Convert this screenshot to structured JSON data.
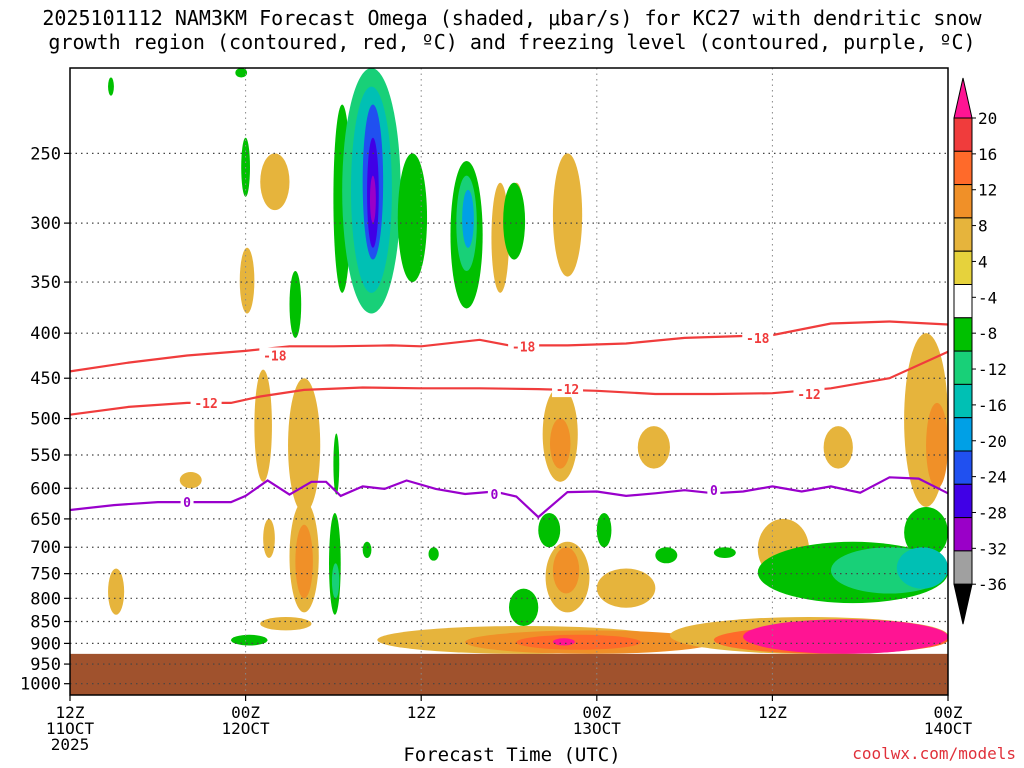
{
  "title": {
    "line1": "2025101112 NAM3KM Forecast Omega (shaded, μbar/s) for KC27 with dendritic snow",
    "line2": "growth region (contoured, red, ºC) and freezing level (contoured, purple, ºC)"
  },
  "credit": "coolwx.com/models",
  "chart_data": {
    "type": "heatmap",
    "xlabel": "Forecast Time (UTC)",
    "ylabel": "",
    "y_scale": "log-pressure",
    "ylim_hPa": [
      1030,
      200
    ],
    "xlim_hours": [
      0,
      60
    ],
    "y_ticks": [
      250,
      300,
      350,
      400,
      450,
      500,
      550,
      600,
      650,
      700,
      750,
      800,
      850,
      900,
      950,
      1000
    ],
    "x_ticks": [
      {
        "hour": 0,
        "lines": [
          "12Z",
          "11OCT",
          "2025"
        ]
      },
      {
        "hour": 12,
        "lines": [
          "00Z",
          "12OCT"
        ]
      },
      {
        "hour": 24,
        "lines": [
          "12Z"
        ]
      },
      {
        "hour": 36,
        "lines": [
          "00Z",
          "13OCT"
        ]
      },
      {
        "hour": 48,
        "lines": [
          "12Z"
        ]
      },
      {
        "hour": 60,
        "lines": [
          "00Z",
          "14OCT"
        ]
      }
    ],
    "colorbar": {
      "labels": [
        20,
        16,
        12,
        8,
        4,
        -4,
        -8,
        -12,
        -16,
        -20,
        -24,
        -28,
        -32,
        -36
      ],
      "colors": [
        "#ff1493",
        "#f03c3c",
        "#ff6a2a",
        "#f09028",
        "#e6b43c",
        "#e6d23c",
        "#ffffff",
        "#00c000",
        "#18d078",
        "#00c0b4",
        "#00a0e6",
        "#2050f0",
        "#4000e6",
        "#9a00c8",
        "#a0a0a0",
        "#000000"
      ]
    },
    "ground_color": "#a0522d",
    "ground_top_hPa": 925,
    "series": [
      {
        "name": "-18",
        "color": "#f03c3c",
        "x": [
          0,
          4,
          8,
          12,
          15,
          18,
          22,
          24,
          28,
          30,
          34,
          38,
          42,
          46,
          48,
          52,
          56,
          60
        ],
        "y": [
          442,
          432,
          424,
          419,
          414,
          414,
          413,
          414,
          407,
          413,
          413,
          411,
          405,
          403,
          402,
          390,
          388,
          391
        ]
      },
      {
        "name": "-12",
        "color": "#f03c3c",
        "x": [
          0,
          4,
          8,
          11,
          13,
          16,
          20,
          24,
          28,
          32,
          36,
          40,
          44,
          48,
          52,
          56,
          60
        ],
        "y": [
          495,
          485,
          480,
          480,
          472,
          464,
          461,
          462,
          462,
          463,
          465,
          469,
          469,
          468,
          462,
          450,
          420
        ]
      },
      {
        "name": "0",
        "color": "#9900cc",
        "x": [
          0,
          3,
          6,
          9,
          11,
          12,
          13.5,
          15,
          16.5,
          17.5,
          18.5,
          20,
          21.5,
          23,
          25,
          27,
          29,
          30.5,
          32,
          34,
          36,
          38,
          40,
          42,
          44,
          46,
          48,
          50,
          52,
          54,
          56,
          58,
          60
        ],
        "y": [
          635,
          627,
          622,
          622,
          622,
          612,
          588,
          610,
          590,
          590,
          612,
          597,
          601,
          588,
          601,
          609,
          605,
          613,
          647,
          606,
          605,
          612,
          608,
          603,
          608,
          605,
          597,
          605,
          597,
          607,
          583,
          585,
          608
        ]
      }
    ],
    "contour_labels": [
      {
        "text": "-18",
        "x": 14,
        "y": 424
      },
      {
        "text": "-18",
        "x": 31,
        "y": 414
      },
      {
        "text": "-18",
        "x": 47,
        "y": 405
      },
      {
        "text": "-12",
        "x": 9.3,
        "y": 480
      },
      {
        "text": "-12",
        "x": 34,
        "y": 463
      },
      {
        "text": "-12",
        "x": 50.5,
        "y": 469
      },
      {
        "text": "0",
        "x": 8,
        "y": 622
      },
      {
        "text": "0",
        "x": 29,
        "y": 609
      },
      {
        "text": "0",
        "x": 44,
        "y": 603
      }
    ],
    "omega_regions": [
      {
        "value": 6,
        "x": [
          2.6,
          3.7
        ],
        "y": [
          740,
          835
        ]
      },
      {
        "value": 6,
        "x": [
          13.0,
          15.0
        ],
        "y": [
          250,
          290
        ]
      },
      {
        "value": 6,
        "x": [
          11.6,
          12.6
        ],
        "y": [
          320,
          380
        ]
      },
      {
        "value": 6,
        "x": [
          12.6,
          13.8
        ],
        "y": [
          440,
          590
        ]
      },
      {
        "value": 6,
        "x": [
          13.2,
          14.0
        ],
        "y": [
          650,
          720
        ]
      },
      {
        "value": 6,
        "x": [
          14.9,
          17.1
        ],
        "y": [
          450,
          640
        ]
      },
      {
        "value": 6,
        "x": [
          15.0,
          17.0
        ],
        "y": [
          620,
          830
        ]
      },
      {
        "value": 10,
        "x": [
          15.4,
          16.6
        ],
        "y": [
          660,
          800
        ]
      },
      {
        "value": 6,
        "x": [
          33.0,
          35.0
        ],
        "y": [
          250,
          345
        ]
      },
      {
        "value": 6,
        "x": [
          28.8,
          30.0
        ],
        "y": [
          270,
          360
        ]
      },
      {
        "value": 6,
        "x": [
          30.0,
          31.0
        ],
        "y": [
          270,
          320
        ]
      },
      {
        "value": 6,
        "x": [
          32.3,
          34.7
        ],
        "y": [
          460,
          590
        ]
      },
      {
        "value": 10,
        "x": [
          32.8,
          34.2
        ],
        "y": [
          500,
          570
        ]
      },
      {
        "value": 6,
        "x": [
          32.5,
          35.5
        ],
        "y": [
          690,
          830
        ]
      },
      {
        "value": 10,
        "x": [
          33.0,
          34.8
        ],
        "y": [
          700,
          790
        ]
      },
      {
        "value": 6,
        "x": [
          36.0,
          40.0
        ],
        "y": [
          740,
          820
        ]
      },
      {
        "value": 6,
        "x": [
          38.8,
          41.0
        ],
        "y": [
          510,
          570
        ]
      },
      {
        "value": 6,
        "x": [
          47.0,
          50.5
        ],
        "y": [
          650,
          760
        ]
      },
      {
        "value": 6,
        "x": [
          51.5,
          53.5
        ],
        "y": [
          510,
          570
        ]
      },
      {
        "value": 6,
        "x": [
          57.0,
          60.0
        ],
        "y": [
          400,
          630
        ]
      },
      {
        "value": 10,
        "x": [
          58.5,
          60.0
        ],
        "y": [
          480,
          600
        ]
      },
      {
        "value": 6,
        "x": [
          7.5,
          9.0
        ],
        "y": [
          575,
          600
        ]
      },
      {
        "value": 6,
        "x": [
          13.0,
          16.5
        ],
        "y": [
          840,
          870
        ]
      },
      {
        "value": 6,
        "x": [
          21.0,
          41.0
        ],
        "y": [
          860,
          925
        ]
      },
      {
        "value": 10,
        "x": [
          27.0,
          44.0
        ],
        "y": [
          870,
          925
        ]
      },
      {
        "value": 14,
        "x": [
          30.5,
          39.0
        ],
        "y": [
          880,
          915
        ]
      },
      {
        "value": 18,
        "x": [
          33.0,
          34.5
        ],
        "y": [
          888,
          905
        ]
      },
      {
        "value": 6,
        "x": [
          41.0,
          60.0
        ],
        "y": [
          840,
          925
        ]
      },
      {
        "value": 14,
        "x": [
          44.0,
          60.0
        ],
        "y": [
          860,
          925
        ]
      },
      {
        "value": 20,
        "x": [
          46.0,
          60.0
        ],
        "y": [
          845,
          925
        ]
      },
      {
        "value": -6,
        "x": [
          2.6,
          3.0
        ],
        "y": [
          205,
          215
        ]
      },
      {
        "value": -6,
        "x": [
          11.3,
          12.1
        ],
        "y": [
          200,
          205
        ]
      },
      {
        "value": -6,
        "x": [
          11.7,
          12.3
        ],
        "y": [
          240,
          280
        ]
      },
      {
        "value": -6,
        "x": [
          15.0,
          15.8
        ],
        "y": [
          340,
          405
        ]
      },
      {
        "value": -6,
        "x": [
          18.0,
          19.2
        ],
        "y": [
          220,
          360
        ]
      },
      {
        "value": -10,
        "x": [
          18.6,
          22.6
        ],
        "y": [
          200,
          380
        ]
      },
      {
        "value": -14,
        "x": [
          19.2,
          22.0
        ],
        "y": [
          210,
          360
        ]
      },
      {
        "value": -20,
        "x": [
          20.0,
          21.4
        ],
        "y": [
          220,
          330
        ]
      },
      {
        "value": -26,
        "x": [
          20.3,
          21.1
        ],
        "y": [
          240,
          320
        ]
      },
      {
        "value": -30,
        "x": [
          20.5,
          20.9
        ],
        "y": [
          265,
          300
        ]
      },
      {
        "value": -6,
        "x": [
          22.4,
          24.4
        ],
        "y": [
          250,
          350
        ]
      },
      {
        "value": -6,
        "x": [
          26.0,
          28.2
        ],
        "y": [
          255,
          375
        ]
      },
      {
        "value": -10,
        "x": [
          26.4,
          27.8
        ],
        "y": [
          265,
          340
        ]
      },
      {
        "value": -18,
        "x": [
          26.8,
          27.6
        ],
        "y": [
          275,
          320
        ]
      },
      {
        "value": -6,
        "x": [
          29.6,
          31.1
        ],
        "y": [
          270,
          330
        ]
      },
      {
        "value": -6,
        "x": [
          18.0,
          18.4
        ],
        "y": [
          520,
          610
        ]
      },
      {
        "value": -6,
        "x": [
          17.7,
          18.5
        ],
        "y": [
          640,
          835
        ]
      },
      {
        "value": -10,
        "x": [
          17.9,
          18.4
        ],
        "y": [
          730,
          800
        ]
      },
      {
        "value": -6,
        "x": [
          11.0,
          13.5
        ],
        "y": [
          880,
          905
        ]
      },
      {
        "value": -6,
        "x": [
          20.0,
          20.6
        ],
        "y": [
          690,
          720
        ]
      },
      {
        "value": -6,
        "x": [
          24.5,
          25.2
        ],
        "y": [
          700,
          725
        ]
      },
      {
        "value": -6,
        "x": [
          30.0,
          32.0
        ],
        "y": [
          780,
          860
        ]
      },
      {
        "value": -6,
        "x": [
          32.0,
          33.5
        ],
        "y": [
          640,
          700
        ]
      },
      {
        "value": -6,
        "x": [
          36.0,
          37.0
        ],
        "y": [
          640,
          700
        ]
      },
      {
        "value": -6,
        "x": [
          40.0,
          41.5
        ],
        "y": [
          700,
          730
        ]
      },
      {
        "value": -6,
        "x": [
          44.0,
          45.5
        ],
        "y": [
          700,
          720
        ]
      },
      {
        "value": -6,
        "x": [
          47.0,
          60.0
        ],
        "y": [
          690,
          810
        ]
      },
      {
        "value": -6,
        "x": [
          57.0,
          60.0
        ],
        "y": [
          630,
          720
        ]
      },
      {
        "value": -10,
        "x": [
          52.0,
          60.0
        ],
        "y": [
          700,
          790
        ]
      },
      {
        "value": -14,
        "x": [
          56.5,
          60.0
        ],
        "y": [
          700,
          780
        ]
      }
    ]
  }
}
